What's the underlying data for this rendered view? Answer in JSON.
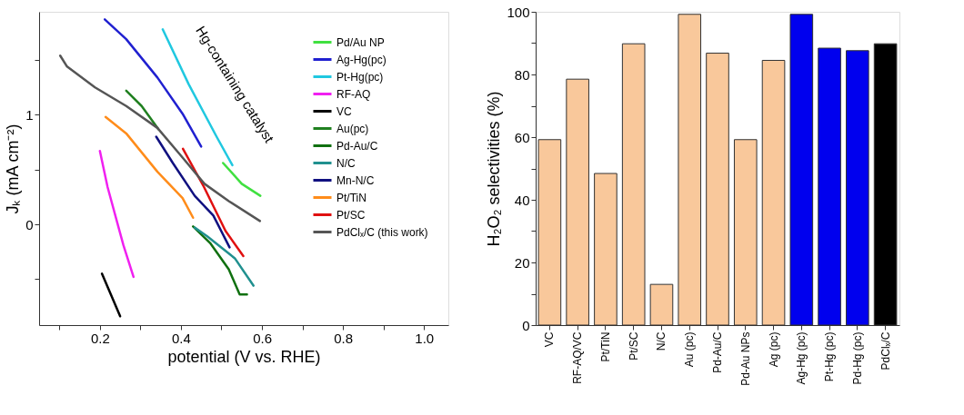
{
  "chart_data": [
    {
      "type": "line",
      "xlabel": "potential (V vs. RHE)",
      "ylabel": "Jₖ (mA cm⁻²)",
      "xlim": [
        0.05,
        1.06
      ],
      "ylim": [
        -0.92,
        1.94
      ],
      "xticks": [
        {
          "value": 0.1,
          "label": null
        },
        0.2,
        {
          "value": 0.3,
          "label": null
        },
        0.4,
        {
          "value": 0.5,
          "label": null
        },
        0.6,
        {
          "value": 0.7,
          "label": null
        },
        0.8,
        {
          "value": 0.9,
          "label": null
        },
        {
          "value": 1.0,
          "label": "1.0"
        }
      ],
      "yticks": [
        {
          "value": -0.5,
          "label": null
        },
        0,
        {
          "value": 0.5,
          "label": null
        },
        1,
        {
          "value": 1.5,
          "label": null
        }
      ],
      "grid": false,
      "legend": "top right",
      "annotations": [
        "Hg-containing catalyst"
      ],
      "series": [
        {
          "name": "Pd/Au NP",
          "color": "#40e040",
          "x": [
            0.504,
            0.55,
            0.596
          ],
          "values": [
            0.56,
            0.37,
            0.26
          ]
        },
        {
          "name": "Ag-Hg(pc)",
          "color": "#2020d0",
          "x": [
            0.212,
            0.265,
            0.342,
            0.404,
            0.45
          ],
          "values": [
            1.87,
            1.69,
            1.34,
            1.01,
            0.71
          ]
        },
        {
          "name": "Pt-Hg(pc)",
          "color": "#20c8e0",
          "x": [
            0.355,
            0.419,
            0.488,
            0.527
          ],
          "values": [
            1.78,
            1.28,
            0.8,
            0.54
          ]
        },
        {
          "name": "RF-AQ",
          "color": "#f020f0",
          "x": [
            0.2,
            0.219,
            0.258,
            0.283
          ],
          "values": [
            0.67,
            0.34,
            -0.19,
            -0.48
          ]
        },
        {
          "name": "VC",
          "color": "#000000",
          "x": [
            0.205,
            0.234,
            0.25
          ],
          "values": [
            -0.45,
            -0.7,
            -0.84
          ]
        },
        {
          "name": "Au(pc)",
          "color": "#208020",
          "x": [
            0.265,
            0.303,
            0.344
          ],
          "values": [
            1.22,
            1.08,
            0.87
          ]
        },
        {
          "name": "Pd-Au/C",
          "color": "#107010",
          "x": [
            0.43,
            0.472,
            0.518,
            0.545,
            0.563
          ],
          "values": [
            -0.02,
            -0.17,
            -0.41,
            -0.64,
            -0.64
          ]
        },
        {
          "name": "N/C",
          "color": "#20908f",
          "x": [
            0.434,
            0.465,
            0.533,
            0.579
          ],
          "values": [
            -0.03,
            -0.11,
            -0.31,
            -0.56
          ]
        },
        {
          "name": "Mn-N/C",
          "color": "#101080",
          "x": [
            0.339,
            0.38,
            0.434,
            0.48,
            0.52
          ],
          "values": [
            0.8,
            0.56,
            0.26,
            0.08,
            -0.21
          ]
        },
        {
          "name": "Pt/TiN",
          "color": "#ff8c1a",
          "x": [
            0.214,
            0.265,
            0.342,
            0.404,
            0.43
          ],
          "values": [
            0.98,
            0.83,
            0.48,
            0.24,
            0.06
          ]
        },
        {
          "name": "Pt/SC",
          "color": "#e01010",
          "x": [
            0.405,
            0.457,
            0.51,
            0.554
          ],
          "values": [
            0.69,
            0.34,
            -0.06,
            -0.29
          ]
        },
        {
          "name": "PdClₓ/C (this work)",
          "color": "#555555",
          "x": [
            0.102,
            0.119,
            0.188,
            0.265,
            0.342,
            0.404,
            0.458,
            0.519,
            0.595
          ],
          "values": [
            1.54,
            1.44,
            1.25,
            1.08,
            0.88,
            0.61,
            0.37,
            0.21,
            0.03
          ]
        }
      ]
    },
    {
      "type": "bar",
      "ylabel": "H₂O₂ selectivities (%)",
      "ylim": [
        0,
        100
      ],
      "yticks": [
        0,
        {
          "value": 10,
          "label": null
        },
        20,
        {
          "value": 30,
          "label": null
        },
        40,
        {
          "value": 50,
          "label": null
        },
        60,
        {
          "value": 70,
          "label": null
        },
        80,
        {
          "value": 90,
          "label": null
        },
        100
      ],
      "grid": false,
      "categories": [
        "VC",
        "RF-AQ/VC",
        "Pt/TiN",
        "Pt/SC",
        "N/C",
        "Au (pc)",
        "Pd-Au/C",
        "Pd-Au NPs",
        "Ag (pc)",
        "Ag-Hg (pc)",
        "Pt-Hg (pc)",
        "Pd-Hg (pc)",
        "PdClₓ/C"
      ],
      "values": [
        59.2,
        78.5,
        48.4,
        89.8,
        13.0,
        99.2,
        86.8,
        59.2,
        84.5,
        99.2,
        88.4,
        87.6,
        89.8
      ],
      "colors": [
        "#f9c89b",
        "#f9c89b",
        "#f9c89b",
        "#f9c89b",
        "#f9c89b",
        "#f9c89b",
        "#f9c89b",
        "#f9c89b",
        "#f9c89b",
        "#0000ee",
        "#0000ee",
        "#0000ee",
        "#000000"
      ]
    }
  ]
}
